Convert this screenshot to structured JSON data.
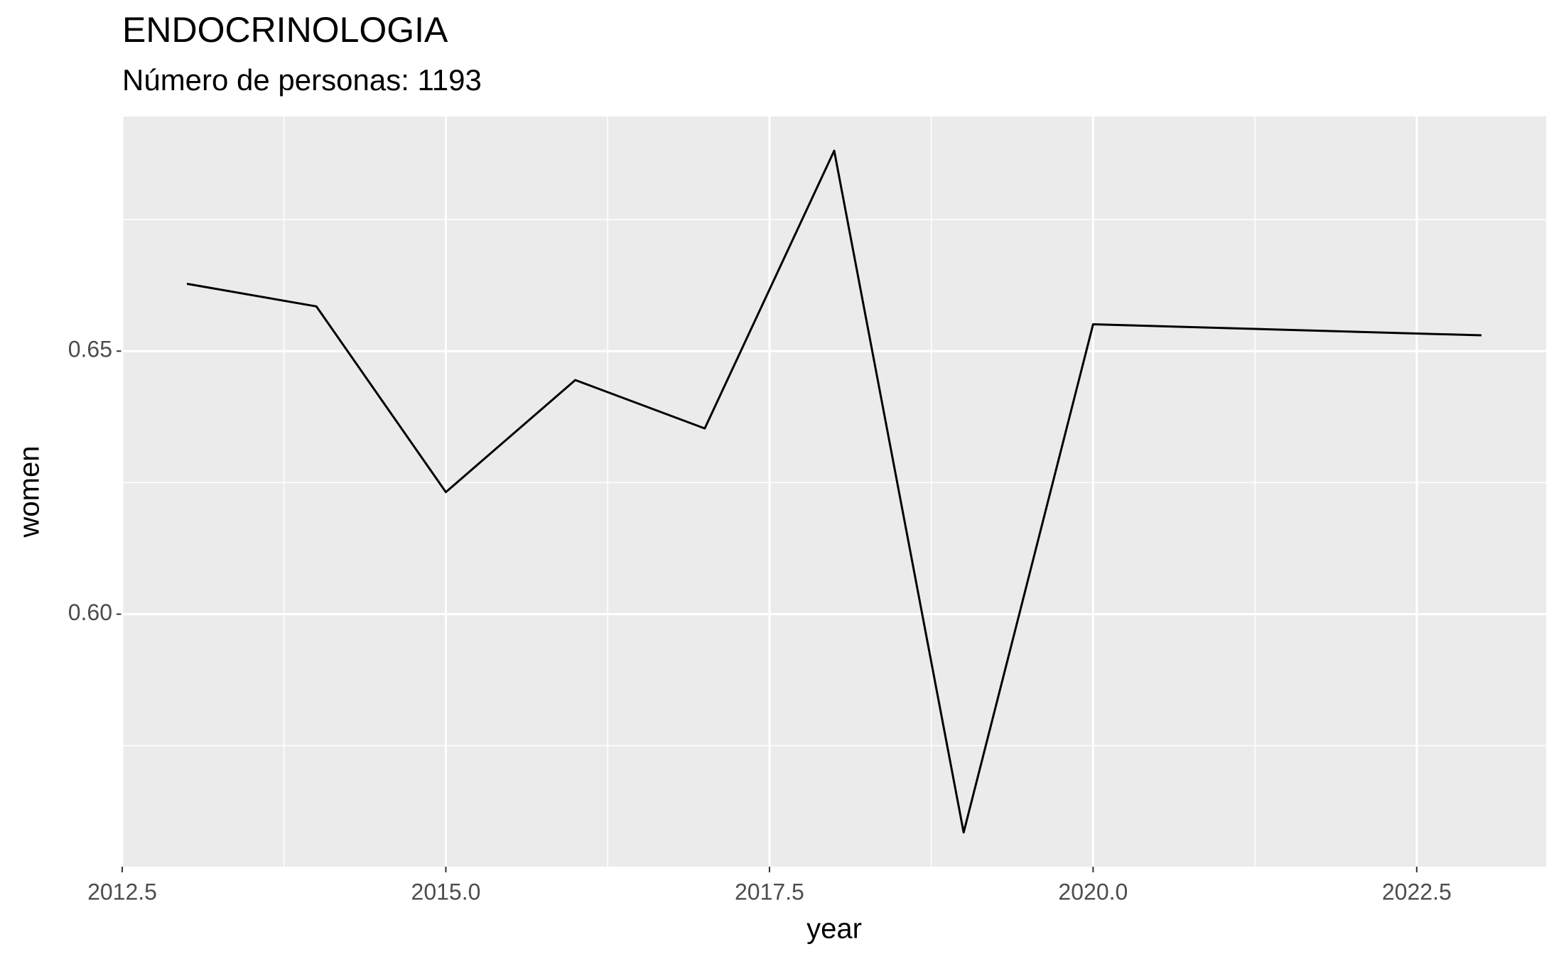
{
  "chart_data": {
    "type": "line",
    "title": "ENDOCRINOLOGIA",
    "subtitle": "Número de personas: 1193",
    "x_label": "year",
    "y_label": "women",
    "x": [
      2013,
      2014,
      2015,
      2016,
      2017,
      2018,
      2019,
      2020,
      2023
    ],
    "series": [
      {
        "name": "women",
        "color": "#000000",
        "values": [
          0.6628,
          0.6585,
          0.6232,
          0.6445,
          0.6353,
          0.6881,
          0.5585,
          0.6551,
          0.653
        ]
      }
    ],
    "xlim": [
      2012.5,
      2023.5
    ],
    "xticks": [
      {
        "value": 2012.5,
        "label": "2012.5"
      },
      {
        "value": 2015,
        "label": "2015.0"
      },
      {
        "value": 2017.5,
        "label": "2017.5"
      },
      {
        "value": 2020,
        "label": "2020.0"
      },
      {
        "value": 2022.5,
        "label": "2022.5"
      }
    ],
    "xminor": [
      2013.75,
      2016.25,
      2018.75,
      2021.25
    ],
    "ylim": [
      0.552,
      0.6946
    ],
    "yticks": [
      {
        "value": 0.6,
        "label": "0.60"
      },
      {
        "value": 0.65,
        "label": "0.65"
      }
    ],
    "yminor": [
      0.575,
      0.625,
      0.675
    ],
    "grid": true
  }
}
